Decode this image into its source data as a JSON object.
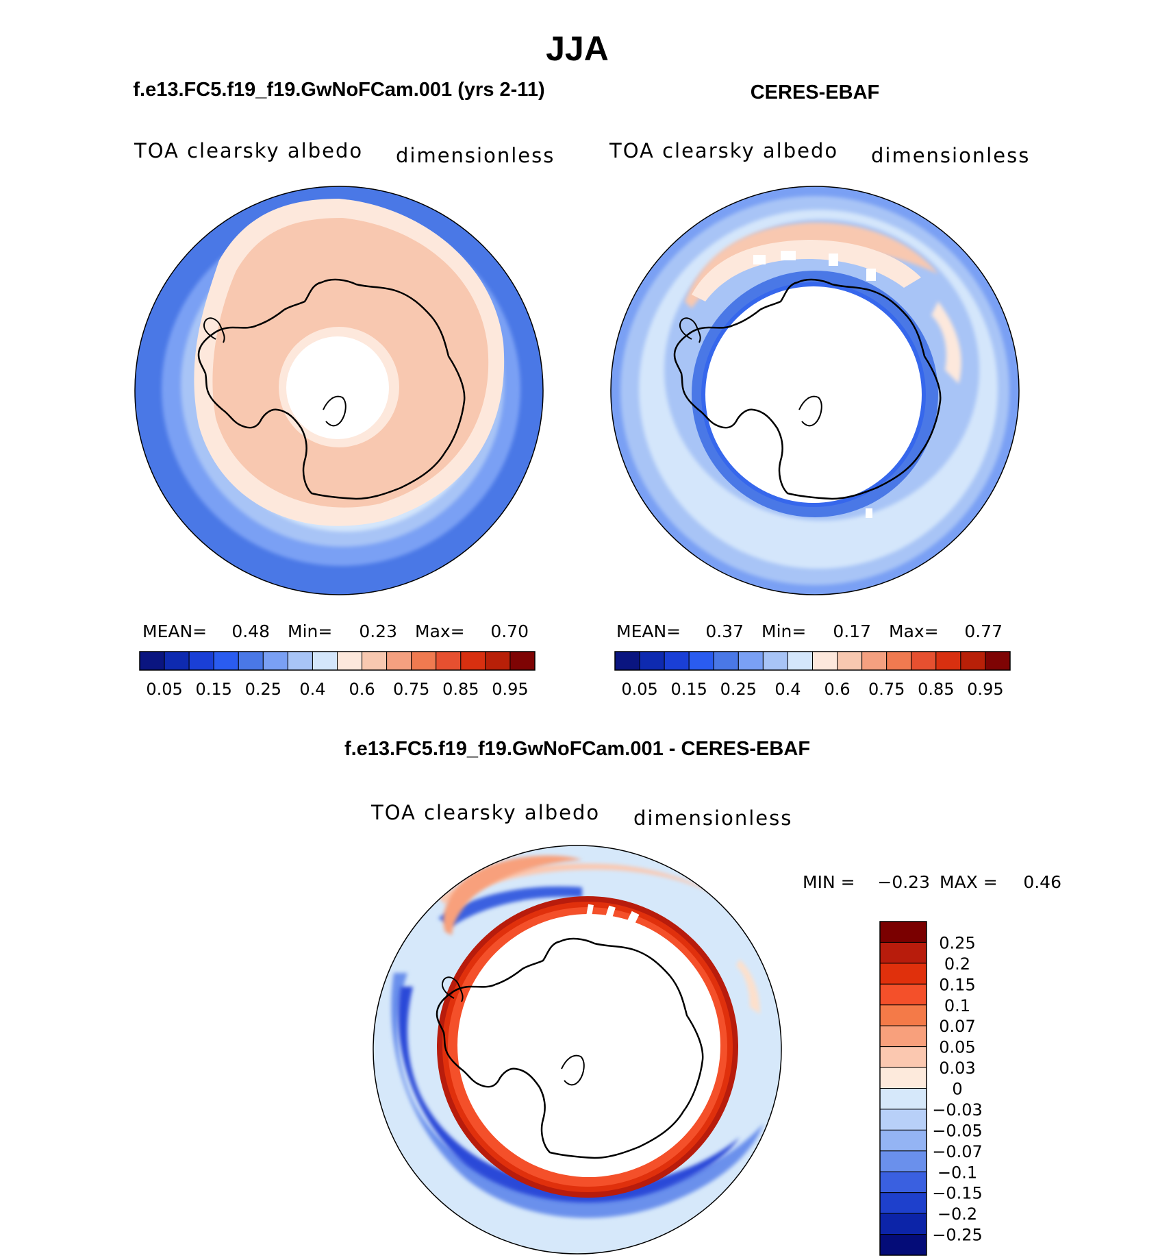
{
  "chart_data": {
    "type": "heatmap",
    "title": "JJA",
    "panels": [
      {
        "case_title": "f.e13.FC5.f19_f19.GwNoFCam.001 (yrs 2-11)",
        "variable": "TOA clearsky albedo",
        "units": "dimensionless",
        "stats": {
          "mean_label": "MEAN=",
          "mean": "0.48",
          "min_label": "Min=",
          "min": "0.23",
          "max_label": "Max=",
          "max": "0.70"
        },
        "levels": [
          "0.05",
          "0.15",
          "0.25",
          "0.4",
          "0.6",
          "0.75",
          "0.85",
          "0.95"
        ]
      },
      {
        "case_title": "CERES-EBAF",
        "variable": "TOA clearsky albedo",
        "units": "dimensionless",
        "stats": {
          "mean_label": "MEAN=",
          "mean": "0.37",
          "min_label": "Min=",
          "min": "0.17",
          "max_label": "Max=",
          "max": "0.77"
        },
        "levels": [
          "0.05",
          "0.15",
          "0.25",
          "0.4",
          "0.6",
          "0.75",
          "0.85",
          "0.95"
        ]
      },
      {
        "case_title": "f.e13.FC5.f19_f19.GwNoFCam.001 - CERES-EBAF",
        "variable": "TOA clearsky albedo",
        "units": "dimensionless",
        "stats": {
          "min_label": "MIN =",
          "min": "−0.23",
          "max_label": "MAX =",
          "max": "0.46"
        },
        "levels": [
          "0.25",
          "0.2",
          "0.15",
          "0.1",
          "0.07",
          "0.05",
          "0.03",
          "0",
          "−0.03",
          "−0.05",
          "−0.07",
          "−0.1",
          "−0.15",
          "−0.2",
          "−0.25"
        ]
      }
    ]
  },
  "colors": {
    "seq_palette": [
      "#0a1580",
      "#0e2ab0",
      "#1a3fd6",
      "#2a5cf0",
      "#4a78e6",
      "#7aa0f4",
      "#a8c4f6",
      "#d4e6fb",
      "#fde8dc",
      "#f8c8b0",
      "#f4a080",
      "#f07a50",
      "#e65030",
      "#d83010",
      "#b82008",
      "#7e0404"
    ],
    "diff_palette_top_down": [
      "#7a0000",
      "#b81c0c",
      "#e0300c",
      "#f4502a",
      "#f47a48",
      "#f8a07c",
      "#fbc8b0",
      "#fdeadc",
      "#d6e8fa",
      "#b8d0f8",
      "#94b4f4",
      "#6a90ec",
      "#3a60e0",
      "#1e40cc",
      "#0c24a8",
      "#040c78"
    ],
    "polar_white": "#ffffff",
    "coastline": "#000000"
  }
}
